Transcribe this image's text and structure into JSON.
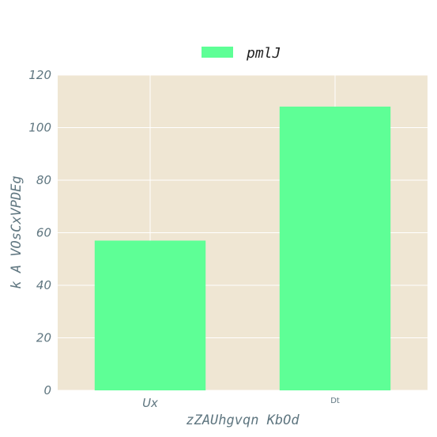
{
  "chart_data": {
    "type": "bar",
    "title": "",
    "xlabel": "zZAUhgvqn  KbOd",
    "ylabel": "k  A  VOsCxVPDEg",
    "categories": [
      "Ux",
      "Dt"
    ],
    "series": [
      {
        "name": "pmlJ",
        "values": [
          57,
          108
        ]
      }
    ],
    "ylim": [
      0,
      120
    ],
    "yticks": [
      0,
      20,
      40,
      60,
      80,
      100,
      120
    ],
    "grid": true,
    "legend": "top-center",
    "colors": {
      "bar": "#5eff96",
      "plot_background": "#efe6d3",
      "grid": "#ffffff",
      "text": "#5f7680"
    }
  }
}
